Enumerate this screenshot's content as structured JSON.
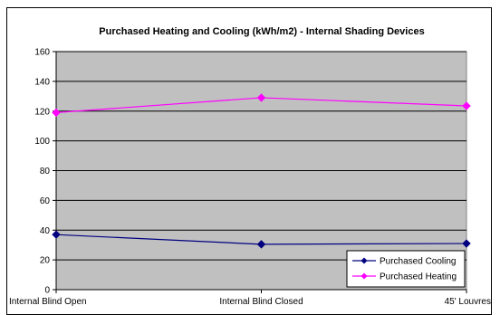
{
  "chart_data": {
    "type": "line",
    "title": "Purchased Heating and Cooling (kWh/m2) - Internal Shading Devices",
    "categories": [
      "Internal Blind Open",
      "Internal Blind Closed",
      "45' Louvres"
    ],
    "series": [
      {
        "name": "Purchased Cooling",
        "values": [
          37,
          30.5,
          31
        ],
        "color": "#000080"
      },
      {
        "name": "Purchased Heating",
        "values": [
          119,
          129,
          123.5
        ],
        "color": "#ff00ff"
      }
    ],
    "ylim": [
      0,
      160
    ],
    "yticks": [
      0,
      20,
      40,
      60,
      80,
      100,
      120,
      140,
      160
    ],
    "grid": true,
    "plot_background": "#c0c0c0",
    "legend_position": "bottom-right",
    "xlabel": "",
    "ylabel": ""
  }
}
